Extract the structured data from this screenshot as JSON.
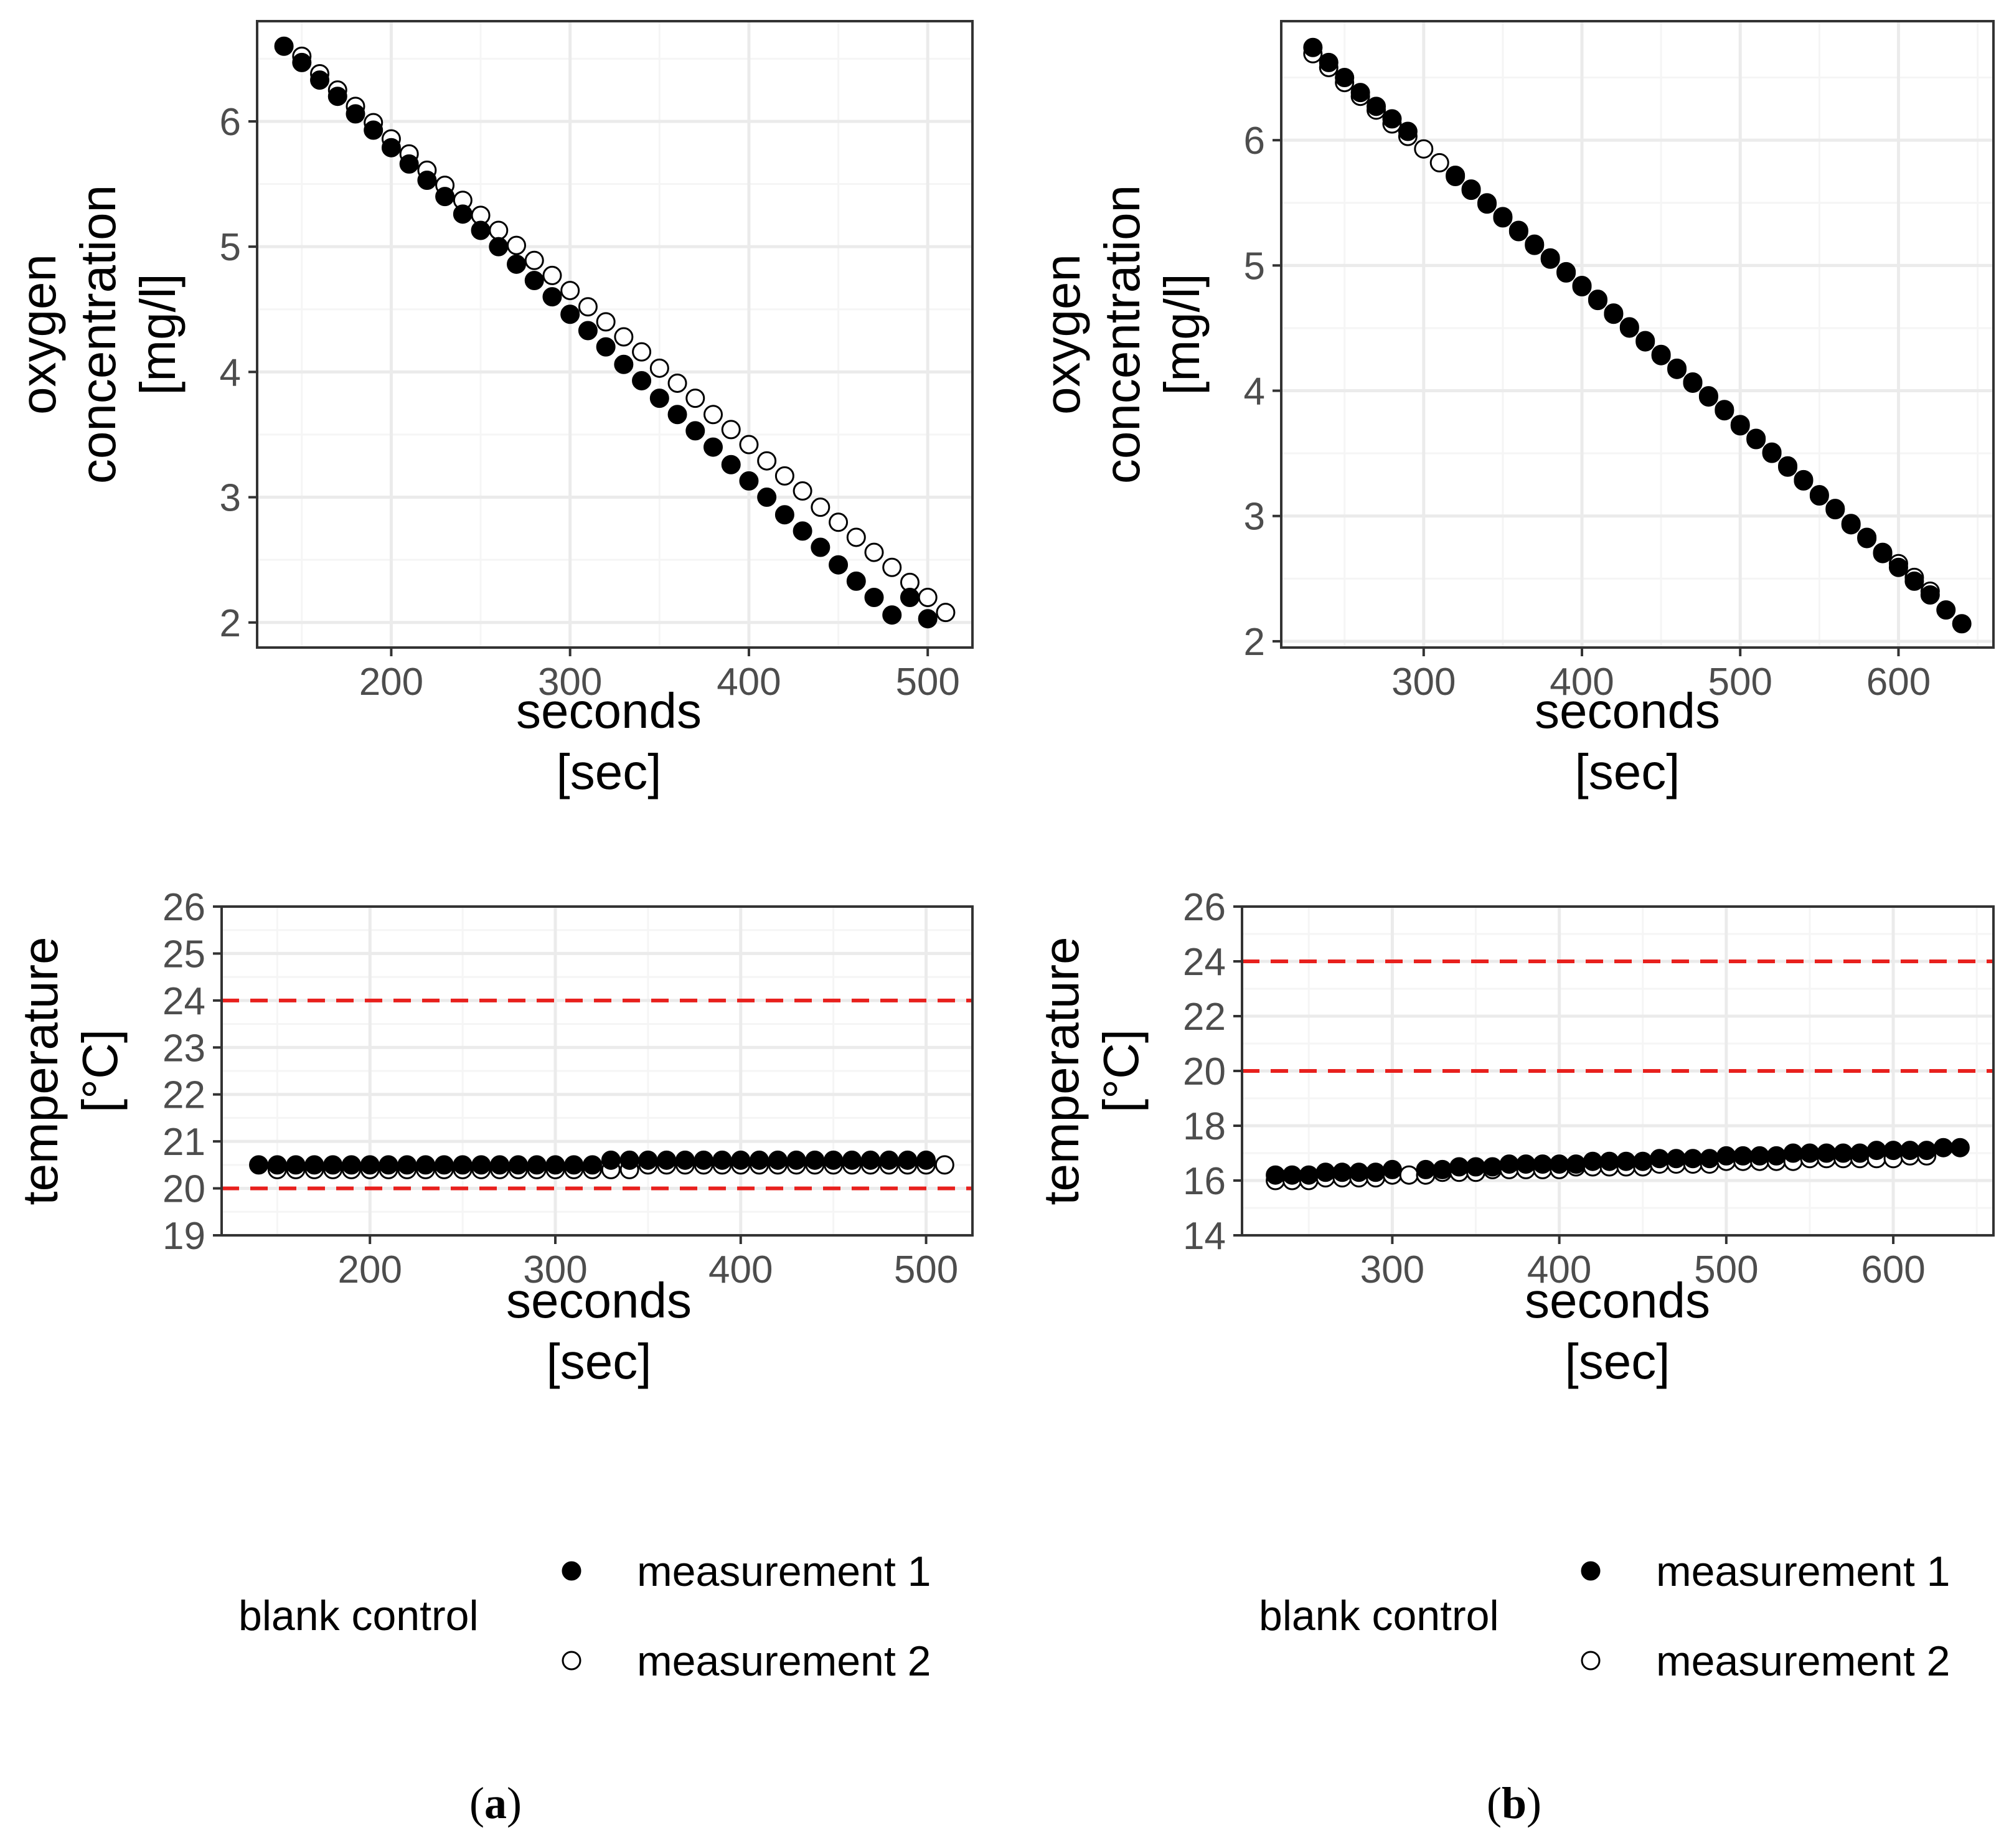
{
  "colors": {
    "measurement_1": "#000000",
    "measurement_2_fill": "#ffffff",
    "reference_line": "#e8201d",
    "grid_major": "#ebebeb",
    "grid_minor": "#f5f5f5",
    "panel_border": "#333333"
  },
  "legend": {
    "title": "blank control",
    "items": [
      "measurement 1",
      "measurement 2"
    ]
  },
  "chart_data": [
    {
      "id": "a-oxygen",
      "type": "scatter",
      "panel": "a",
      "xlabel": "seconds\n[sec]",
      "ylabel": "oxygen\nconcentration\n[mg/l]",
      "xlim": [
        125,
        525
      ],
      "ylim": [
        1.8,
        6.8
      ],
      "xticks": [
        200,
        300,
        400,
        500
      ],
      "yticks": [
        2,
        3,
        4,
        5,
        6
      ],
      "xminor": [
        150,
        250,
        350,
        450
      ],
      "yminor": [
        2.5,
        3.5,
        4.5,
        5.5,
        6.5
      ],
      "reference_lines": [],
      "series": [
        {
          "name": "measurement 1",
          "style": "filled",
          "x": [
            140,
            150,
            160,
            170,
            180,
            190,
            200,
            210,
            220,
            230,
            240,
            250,
            260,
            270,
            280,
            290,
            300,
            310,
            320,
            330,
            340,
            350,
            360,
            370,
            380,
            390,
            400,
            410,
            420,
            430,
            440,
            450,
            460,
            470,
            480,
            490,
            500
          ],
          "y": [
            6.6,
            6.47,
            6.33,
            6.2,
            6.06,
            5.93,
            5.79,
            5.66,
            5.53,
            5.4,
            5.26,
            5.13,
            5.0,
            4.86,
            4.73,
            4.6,
            4.46,
            4.33,
            4.2,
            4.06,
            3.93,
            3.79,
            3.66,
            3.53,
            3.4,
            3.26,
            3.13,
            3.0,
            2.86,
            2.73,
            2.6,
            2.46,
            2.33,
            2.2,
            2.06,
            2.2,
            2.03
          ]
        },
        {
          "name": "measurement 2",
          "style": "open",
          "x": [
            150,
            160,
            170,
            180,
            190,
            200,
            210,
            220,
            230,
            240,
            250,
            260,
            270,
            280,
            290,
            300,
            310,
            320,
            330,
            340,
            350,
            360,
            370,
            380,
            390,
            400,
            410,
            420,
            430,
            440,
            450,
            460,
            470,
            480,
            490,
            500,
            510
          ],
          "y": [
            6.52,
            6.38,
            6.25,
            6.12,
            5.99,
            5.86,
            5.74,
            5.61,
            5.49,
            5.37,
            5.25,
            5.13,
            5.01,
            4.89,
            4.77,
            4.65,
            4.52,
            4.4,
            4.28,
            4.16,
            4.03,
            3.91,
            3.79,
            3.66,
            3.54,
            3.42,
            3.29,
            3.17,
            3.05,
            2.92,
            2.8,
            2.68,
            2.56,
            2.44,
            2.32,
            2.2,
            2.08
          ]
        }
      ]
    },
    {
      "id": "b-oxygen",
      "type": "scatter",
      "panel": "b",
      "xlabel": "seconds\n[sec]",
      "ylabel": "oxygen\nconcentration\n[mg/l]",
      "xlim": [
        210,
        660
      ],
      "ylim": [
        1.95,
        6.95
      ],
      "xticks": [
        300,
        400,
        500,
        600
      ],
      "yticks": [
        2,
        3,
        4,
        5,
        6
      ],
      "xminor": [
        250,
        350,
        450,
        550,
        650
      ],
      "yminor": [
        2.5,
        3.5,
        4.5,
        5.5,
        6.5
      ],
      "reference_lines": [],
      "series": [
        {
          "name": "measurement 1",
          "style": "filled",
          "x": [
            230,
            240,
            250,
            260,
            270,
            280,
            290,
            320,
            330,
            340,
            350,
            360,
            370,
            380,
            390,
            400,
            410,
            420,
            430,
            440,
            450,
            460,
            470,
            480,
            490,
            500,
            510,
            520,
            530,
            540,
            550,
            560,
            570,
            580,
            590,
            600,
            610,
            620,
            630,
            640
          ],
          "y": [
            6.74,
            6.62,
            6.5,
            6.38,
            6.27,
            6.17,
            6.07,
            5.72,
            5.61,
            5.5,
            5.39,
            5.28,
            5.17,
            5.06,
            4.95,
            4.84,
            4.73,
            4.62,
            4.51,
            4.4,
            4.29,
            4.18,
            4.07,
            3.96,
            3.85,
            3.73,
            3.62,
            3.51,
            3.4,
            3.29,
            3.17,
            3.06,
            2.94,
            2.83,
            2.71,
            2.59,
            2.48,
            2.37,
            2.25,
            2.14
          ]
        },
        {
          "name": "measurement 2",
          "style": "open",
          "x": [
            230,
            240,
            250,
            260,
            270,
            280,
            290,
            300,
            310,
            320,
            330,
            340,
            350,
            360,
            370,
            380,
            390,
            400,
            410,
            420,
            430,
            440,
            450,
            460,
            470,
            480,
            490,
            500,
            510,
            520,
            530,
            540,
            550,
            560,
            570,
            580,
            590,
            600,
            610,
            620
          ],
          "y": [
            6.69,
            6.58,
            6.46,
            6.35,
            6.24,
            6.13,
            6.03,
            5.93,
            5.82,
            5.71,
            5.6,
            5.49,
            5.38,
            5.27,
            5.16,
            5.05,
            4.94,
            4.83,
            4.72,
            4.61,
            4.5,
            4.39,
            4.28,
            4.17,
            4.06,
            3.95,
            3.84,
            3.72,
            3.61,
            3.5,
            3.39,
            3.28,
            3.16,
            3.05,
            2.93,
            2.82,
            2.7,
            2.62,
            2.51,
            2.4
          ]
        }
      ]
    },
    {
      "id": "a-temperature",
      "type": "scatter",
      "panel": "a",
      "xlabel": "seconds\n[sec]",
      "ylabel": "temperature\n[°C]",
      "xlim": [
        120,
        525
      ],
      "ylim": [
        19,
        26
      ],
      "xticks": [
        200,
        300,
        400,
        500
      ],
      "yticks": [
        19,
        20,
        21,
        22,
        23,
        24,
        25,
        26
      ],
      "xminor": [
        150,
        250,
        350,
        450
      ],
      "yminor": [
        19.5,
        20.5,
        21.5,
        22.5,
        23.5,
        24.5,
        25.5
      ],
      "reference_lines": [
        20,
        24
      ],
      "series": [
        {
          "name": "measurement 1",
          "style": "filled",
          "x": [
            140,
            150,
            160,
            170,
            180,
            190,
            200,
            210,
            220,
            230,
            240,
            250,
            260,
            270,
            280,
            290,
            300,
            310,
            320,
            330,
            340,
            350,
            360,
            370,
            380,
            390,
            400,
            410,
            420,
            430,
            440,
            450,
            460,
            470,
            480,
            490,
            500
          ],
          "y": [
            20.5,
            20.5,
            20.5,
            20.5,
            20.5,
            20.5,
            20.5,
            20.5,
            20.5,
            20.5,
            20.5,
            20.5,
            20.5,
            20.5,
            20.5,
            20.5,
            20.5,
            20.5,
            20.5,
            20.6,
            20.6,
            20.6,
            20.6,
            20.6,
            20.6,
            20.6,
            20.6,
            20.6,
            20.6,
            20.6,
            20.6,
            20.6,
            20.6,
            20.6,
            20.6,
            20.6,
            20.6
          ]
        },
        {
          "name": "measurement 2",
          "style": "open",
          "x": [
            150,
            160,
            170,
            180,
            190,
            200,
            210,
            220,
            230,
            240,
            250,
            260,
            270,
            280,
            290,
            300,
            310,
            320,
            330,
            340,
            350,
            360,
            370,
            380,
            390,
            400,
            410,
            420,
            430,
            440,
            450,
            460,
            470,
            480,
            490,
            500,
            510
          ],
          "y": [
            20.4,
            20.4,
            20.4,
            20.4,
            20.4,
            20.4,
            20.4,
            20.4,
            20.4,
            20.4,
            20.4,
            20.4,
            20.4,
            20.4,
            20.4,
            20.4,
            20.4,
            20.4,
            20.4,
            20.4,
            20.5,
            20.5,
            20.5,
            20.5,
            20.5,
            20.5,
            20.5,
            20.5,
            20.5,
            20.5,
            20.5,
            20.5,
            20.5,
            20.5,
            20.5,
            20.5,
            20.5
          ]
        }
      ]
    },
    {
      "id": "b-temperature",
      "type": "scatter",
      "panel": "b",
      "xlabel": "seconds\n[sec]",
      "ylabel": "temperature\n[°C]",
      "xlim": [
        210,
        660
      ],
      "ylim": [
        14,
        26
      ],
      "xticks": [
        300,
        400,
        500,
        600
      ],
      "yticks": [
        14,
        16,
        18,
        20,
        22,
        24,
        26
      ],
      "xminor": [
        250,
        350,
        450,
        550,
        650
      ],
      "yminor": [
        15,
        17,
        19,
        21,
        23,
        25
      ],
      "reference_lines": [
        20,
        24
      ],
      "series": [
        {
          "name": "measurement 1",
          "style": "filled",
          "x": [
            230,
            240,
            250,
            260,
            270,
            280,
            290,
            300,
            320,
            330,
            340,
            350,
            360,
            370,
            380,
            390,
            400,
            410,
            420,
            430,
            440,
            450,
            460,
            470,
            480,
            490,
            500,
            510,
            520,
            530,
            540,
            550,
            560,
            570,
            580,
            590,
            600,
            610,
            620,
            630,
            640
          ],
          "y": [
            16.2,
            16.2,
            16.2,
            16.3,
            16.3,
            16.3,
            16.3,
            16.4,
            16.4,
            16.4,
            16.5,
            16.5,
            16.5,
            16.6,
            16.6,
            16.6,
            16.6,
            16.6,
            16.7,
            16.7,
            16.7,
            16.7,
            16.8,
            16.8,
            16.8,
            16.8,
            16.9,
            16.9,
            16.9,
            16.9,
            17.0,
            17.0,
            17.0,
            17.0,
            17.0,
            17.1,
            17.1,
            17.1,
            17.1,
            17.2,
            17.2
          ]
        },
        {
          "name": "measurement 2",
          "style": "open",
          "x": [
            230,
            240,
            250,
            260,
            270,
            280,
            290,
            300,
            310,
            320,
            330,
            340,
            350,
            360,
            370,
            380,
            390,
            400,
            410,
            420,
            430,
            440,
            450,
            460,
            470,
            480,
            490,
            500,
            510,
            520,
            530,
            540,
            550,
            560,
            570,
            580,
            590,
            600,
            610,
            620
          ],
          "y": [
            16.0,
            16.0,
            16.0,
            16.1,
            16.1,
            16.1,
            16.1,
            16.2,
            16.2,
            16.2,
            16.3,
            16.3,
            16.3,
            16.4,
            16.4,
            16.4,
            16.4,
            16.4,
            16.5,
            16.5,
            16.5,
            16.5,
            16.5,
            16.6,
            16.6,
            16.6,
            16.6,
            16.7,
            16.7,
            16.7,
            16.7,
            16.7,
            16.8,
            16.8,
            16.8,
            16.8,
            16.8,
            16.8,
            16.9,
            16.9
          ]
        }
      ]
    }
  ],
  "captions": [
    {
      "open": "(",
      "letter": "a",
      "close": ")"
    },
    {
      "open": "(",
      "letter": "b",
      "close": ")"
    }
  ]
}
